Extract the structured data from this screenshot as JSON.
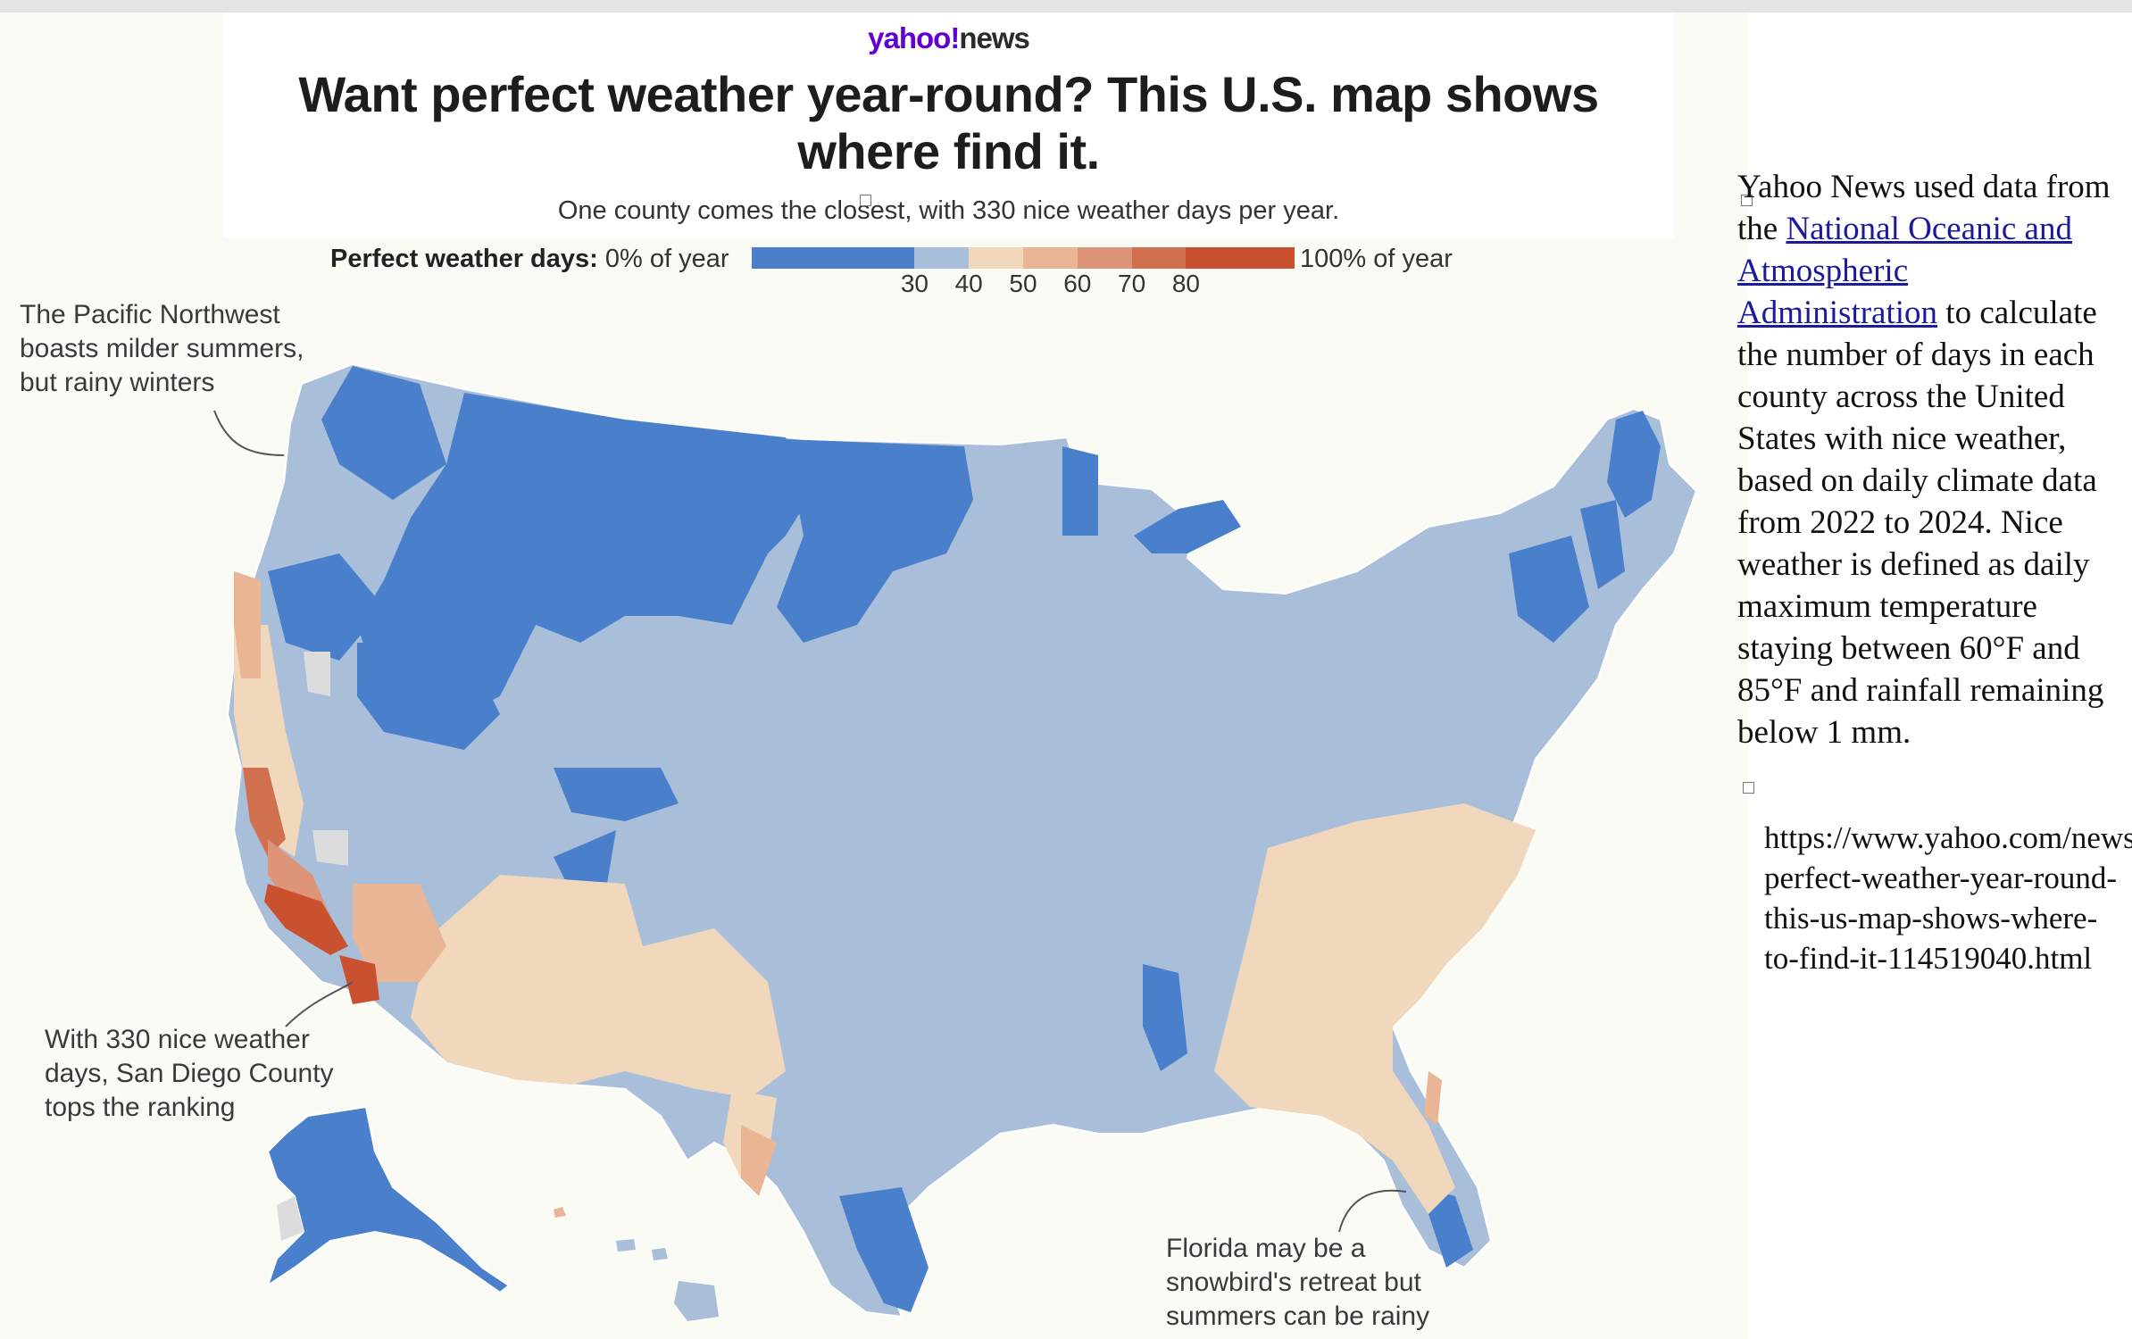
{
  "header": {
    "logo_brand": "yahoo!",
    "logo_section": "news",
    "headline": "Want perfect weather year-round? This U.S. map shows where find it.",
    "subhead": "One county comes the closest, with 330 nice weather days per year."
  },
  "legend": {
    "title_bold": "Perfect weather days:",
    "start_label": "0% of year",
    "end_label": "100% of year",
    "ticks": [
      "30",
      "40",
      "50",
      "60",
      "70",
      "80"
    ],
    "bins": [
      {
        "from": 0,
        "to": 30,
        "color": "#4a7fcb"
      },
      {
        "from": 30,
        "to": 40,
        "color": "#a9bfd9"
      },
      {
        "from": 40,
        "to": 50,
        "color": "#f1d8bd"
      },
      {
        "from": 50,
        "to": 60,
        "color": "#e9b595"
      },
      {
        "from": 60,
        "to": 70,
        "color": "#de9476"
      },
      {
        "from": 70,
        "to": 80,
        "color": "#d1704f"
      },
      {
        "from": 80,
        "to": 100,
        "color": "#c9512f"
      }
    ]
  },
  "annotations": {
    "pacific_northwest": "The Pacific Northwest boasts milder summers, but rainy winters",
    "san_diego": "With 330 nice weather days, San Diego County tops the ranking",
    "florida": "Florida may be a snowbird's retreat but summers can be rainy"
  },
  "sidebar": {
    "text_before": "Yahoo News used data from the ",
    "link_text": "National Oceanic and Atmospheric Administration",
    "text_after": " to calculate the number of days in each county across the United States with nice weather, based on daily climate data from 2022 to 2024. Nice weather is defined as daily maximum temperature staying between 60°F and 85°F and rainfall remaining below 1 mm.",
    "url": "https://www.yahoo.com/news/want-perfect-weather-year-round-this-us-map-shows-where-to-find-it-114519040.html"
  },
  "map": {
    "colors": {
      "dark_blue": "#4a7fcb",
      "light_blue": "#a9bfd9",
      "tan": "#f1d8bd",
      "salmon": "#e9b595",
      "orange": "#d1704f",
      "red": "#c9512f",
      "no_data": "#dcdcdc"
    }
  }
}
